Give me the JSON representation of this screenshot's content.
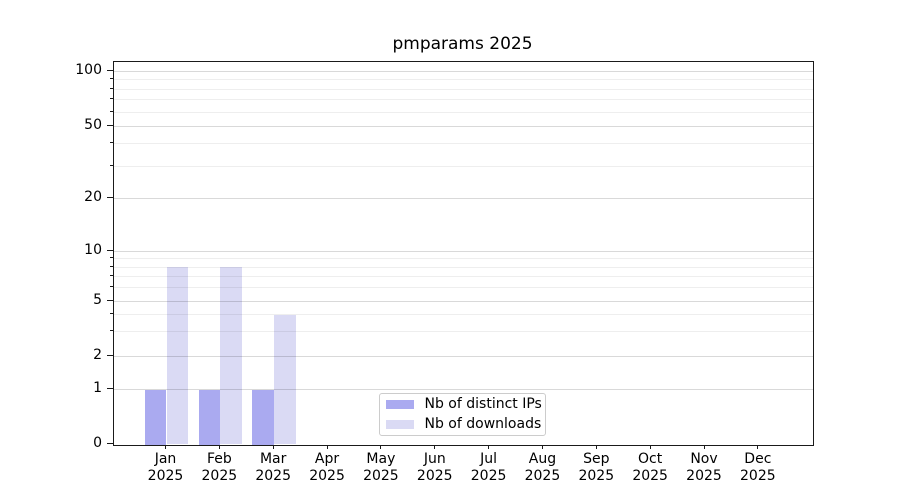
{
  "title": "pmparams 2025",
  "y_axis": {
    "tick_labels": [
      "100",
      "50",
      "20",
      "10",
      "5",
      "2",
      "1",
      "0"
    ],
    "tick_values": [
      100,
      50,
      20,
      10,
      5,
      2,
      1,
      0
    ],
    "minor_tick_values": [
      3,
      4,
      6,
      7,
      8,
      9,
      30,
      40,
      60,
      70,
      80,
      90
    ]
  },
  "x_axis": {
    "months": [
      "Jan",
      "Feb",
      "Mar",
      "Apr",
      "May",
      "Jun",
      "Jul",
      "Aug",
      "Sep",
      "Oct",
      "Nov",
      "Dec"
    ],
    "year": "2025"
  },
  "legend": {
    "items": [
      {
        "key": "distinct-ips",
        "label": "Nb of distinct IPs",
        "color": "#aaaaf0"
      },
      {
        "key": "downloads",
        "label": "Nb of downloads",
        "color": "#dadaf4"
      }
    ]
  },
  "colors": {
    "bar_distinct_ips": "#aaaaf0",
    "bar_downloads": "#dadaf4",
    "axis": "#1a1a1a",
    "legend_border": "#cccccc"
  },
  "chart_data": {
    "type": "bar",
    "title": "pmparams 2025",
    "categories": [
      "Jan 2025",
      "Feb 2025",
      "Mar 2025",
      "Apr 2025",
      "May 2025",
      "Jun 2025",
      "Jul 2025",
      "Aug 2025",
      "Sep 2025",
      "Oct 2025",
      "Nov 2025",
      "Dec 2025"
    ],
    "series": [
      {
        "name": "Nb of distinct IPs",
        "key": "distinct-ips",
        "color": "#aaaaf0",
        "values": [
          1,
          1,
          1,
          0,
          0,
          0,
          0,
          0,
          0,
          0,
          0,
          0
        ]
      },
      {
        "name": "Nb of downloads",
        "key": "downloads",
        "color": "#dadaf4",
        "values": [
          8,
          8,
          4,
          0,
          0,
          0,
          0,
          0,
          0,
          0,
          0,
          0
        ]
      }
    ],
    "yscale": "log-like with 0 baseline",
    "y_ticks": [
      0,
      1,
      2,
      5,
      10,
      20,
      50,
      100
    ],
    "ylim": [
      0,
      115
    ],
    "grid": true,
    "legend_position": "lower center"
  }
}
